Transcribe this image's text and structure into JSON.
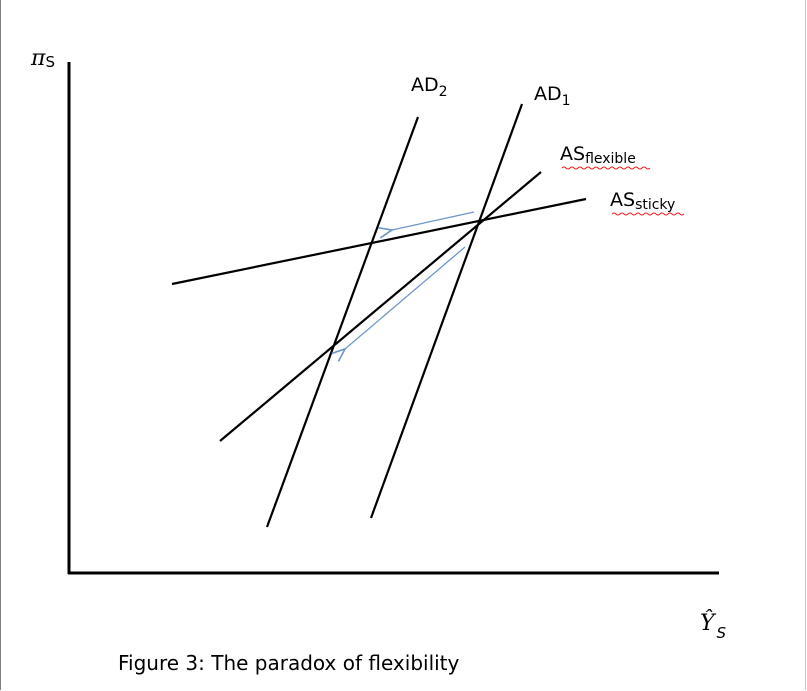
{
  "axes": {
    "y_label": {
      "symbol": "π",
      "subscript": "S"
    },
    "x_label": {
      "symbol": "Ŷ",
      "subscript": "S"
    }
  },
  "curves": {
    "ad2": {
      "base": "AD",
      "subscript": "2"
    },
    "ad1": {
      "base": "AD",
      "subscript": "1"
    },
    "as_flexible": {
      "base": "AS",
      "subscript": "flexible"
    },
    "as_sticky": {
      "base": "AS",
      "subscript": "sticky"
    }
  },
  "caption": "Figure 3: The paradox of flexibility",
  "colors": {
    "lines": "#000000",
    "arrows": "#6f97cc",
    "spellcheck": "#e02020"
  }
}
